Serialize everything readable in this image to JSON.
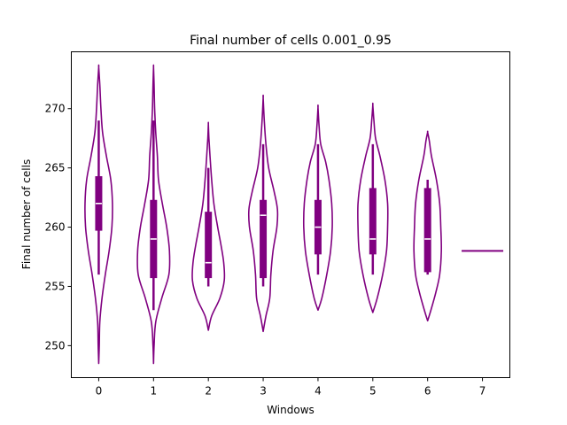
{
  "chart_data": {
    "type": "violin",
    "title": "Final number of cells 0.001_0.95",
    "xlabel": "Windows",
    "ylabel": "Final number of cells",
    "categories": [
      "0",
      "1",
      "2",
      "3",
      "4",
      "5",
      "6",
      "7"
    ],
    "yticks": [
      "250",
      "255",
      "260",
      "265",
      "270"
    ],
    "ylim": [
      247.3,
      274.8
    ],
    "xlim": [
      -0.5,
      7.5
    ],
    "color": "#800080",
    "median_color": "#ffffff",
    "violins": [
      {
        "window": 0,
        "min": 248.5,
        "max": 273.5,
        "q1": 259.7,
        "median": 262,
        "q3": 264.3,
        "whisker_low": 256,
        "whisker_high": 269,
        "profile": [
          [
            248.5,
            0.0
          ],
          [
            250,
            0.01
          ],
          [
            252,
            0.02
          ],
          [
            254,
            0.06
          ],
          [
            256,
            0.12
          ],
          [
            258,
            0.19
          ],
          [
            260,
            0.24
          ],
          [
            262,
            0.25
          ],
          [
            264,
            0.22
          ],
          [
            266,
            0.14
          ],
          [
            268,
            0.07
          ],
          [
            270,
            0.04
          ],
          [
            272,
            0.02
          ],
          [
            273.5,
            0.0
          ]
        ]
      },
      {
        "window": 1,
        "min": 248.5,
        "max": 273.5,
        "q1": 255.7,
        "median": 259,
        "q3": 262.3,
        "whisker_low": 253,
        "whisker_high": 269,
        "profile": [
          [
            248.5,
            0.0
          ],
          [
            250,
            0.01
          ],
          [
            252,
            0.04
          ],
          [
            254,
            0.15
          ],
          [
            256,
            0.28
          ],
          [
            258,
            0.29
          ],
          [
            260,
            0.24
          ],
          [
            262,
            0.16
          ],
          [
            264,
            0.09
          ],
          [
            266,
            0.07
          ],
          [
            268,
            0.04
          ],
          [
            270,
            0.02
          ],
          [
            272,
            0.01
          ],
          [
            273.5,
            0.0
          ]
        ]
      },
      {
        "window": 2,
        "min": 251.3,
        "max": 268.7,
        "q1": 255.7,
        "median": 257,
        "q3": 261.3,
        "whisker_low": 255,
        "whisker_high": 265,
        "profile": [
          [
            251.3,
            0.0
          ],
          [
            252.5,
            0.06
          ],
          [
            254,
            0.21
          ],
          [
            255.5,
            0.29
          ],
          [
            257,
            0.28
          ],
          [
            258.5,
            0.23
          ],
          [
            260,
            0.17
          ],
          [
            262,
            0.1
          ],
          [
            264,
            0.06
          ],
          [
            266,
            0.03
          ],
          [
            267.5,
            0.01
          ],
          [
            268.7,
            0.0
          ]
        ]
      },
      {
        "window": 3,
        "min": 251.2,
        "max": 270.9,
        "q1": 255.7,
        "median": 261,
        "q3": 262.3,
        "whisker_low": 255,
        "whisker_high": 267,
        "profile": [
          [
            251.2,
            0.0
          ],
          [
            252.5,
            0.05
          ],
          [
            254,
            0.12
          ],
          [
            256,
            0.14
          ],
          [
            258,
            0.18
          ],
          [
            260,
            0.25
          ],
          [
            261.5,
            0.26
          ],
          [
            263,
            0.2
          ],
          [
            265,
            0.1
          ],
          [
            267,
            0.05
          ],
          [
            269,
            0.02
          ],
          [
            270.9,
            0.0
          ]
        ]
      },
      {
        "window": 4,
        "min": 253,
        "max": 270.1,
        "q1": 257.7,
        "median": 260,
        "q3": 262.3,
        "whisker_low": 256,
        "whisker_high": 267,
        "profile": [
          [
            253,
            0.0
          ],
          [
            254,
            0.07
          ],
          [
            256,
            0.16
          ],
          [
            258,
            0.23
          ],
          [
            260,
            0.26
          ],
          [
            262,
            0.25
          ],
          [
            264,
            0.2
          ],
          [
            265.5,
            0.14
          ],
          [
            267,
            0.05
          ],
          [
            268.5,
            0.02
          ],
          [
            270.1,
            0.0
          ]
        ]
      },
      {
        "window": 5,
        "min": 252.8,
        "max": 270.3,
        "q1": 257.7,
        "median": 259,
        "q3": 263.3,
        "whisker_low": 256,
        "whisker_high": 267,
        "profile": [
          [
            252.8,
            0.0
          ],
          [
            254,
            0.08
          ],
          [
            256,
            0.18
          ],
          [
            258,
            0.25
          ],
          [
            260,
            0.27
          ],
          [
            262,
            0.27
          ],
          [
            264,
            0.22
          ],
          [
            266,
            0.13
          ],
          [
            267.5,
            0.05
          ],
          [
            269,
            0.02
          ],
          [
            270.3,
            0.0
          ]
        ]
      },
      {
        "window": 6,
        "min": 252.1,
        "max": 268,
        "q1": 256.2,
        "median": 259,
        "q3": 263.3,
        "whisker_low": 256,
        "whisker_high": 264,
        "profile": [
          [
            252.1,
            0.0
          ],
          [
            253,
            0.06
          ],
          [
            254.5,
            0.15
          ],
          [
            256,
            0.22
          ],
          [
            258,
            0.25
          ],
          [
            260,
            0.24
          ],
          [
            262,
            0.22
          ],
          [
            264,
            0.16
          ],
          [
            266,
            0.07
          ],
          [
            267.3,
            0.03
          ],
          [
            268,
            0.0
          ]
        ]
      },
      {
        "window": 7,
        "min": 258,
        "max": 258,
        "q1": 258,
        "median": 258,
        "q3": 258,
        "whisker_low": 258,
        "whisker_high": 258,
        "profile": [
          [
            258,
            0.38
          ]
        ]
      }
    ]
  }
}
